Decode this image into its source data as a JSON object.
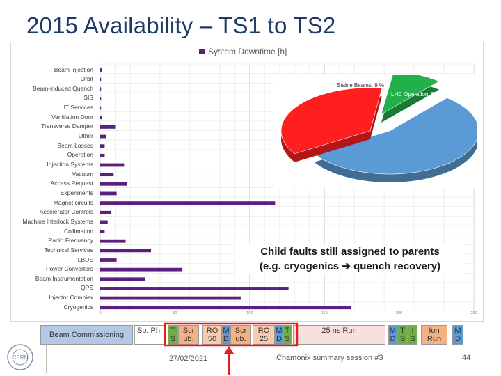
{
  "title": "2015 Availability – TS1 to TS2",
  "chart_data": [
    {
      "type": "bar",
      "orientation": "horizontal",
      "legend": "System Downtime [h]",
      "legend_placement": "top",
      "color": "#5b1f7f",
      "categories": [
        "Beam Injection",
        "Orbit",
        "Beam-induced Quench",
        "SIS",
        "IT Services",
        "Ventilation Door",
        "Transverse Damper",
        "Other",
        "Beam Losses",
        "Operation",
        "Injection Systems",
        "Vacuum",
        "Access Request",
        "Experiments",
        "Magnet circuits",
        "Accelerator Controls",
        "Machine Interlock Systems",
        "Collimation",
        "Radio Frequency",
        "Technical Services",
        "LBDS",
        "Power Converters",
        "Beam Instrumentation",
        "QPS",
        "Injector Complex",
        "Cryogenics"
      ],
      "values": [
        1,
        0.3,
        0.3,
        0.3,
        0.3,
        1.2,
        10,
        4,
        3,
        3,
        16,
        9,
        18,
        11,
        117,
        7,
        5,
        3,
        17,
        34,
        11,
        55,
        30,
        126,
        94,
        168
      ],
      "ticks": [
        "0",
        "50",
        "100",
        "150",
        "200",
        "250"
      ],
      "xlim": [
        0,
        250
      ],
      "grid": true
    },
    {
      "type": "pie",
      "slices": [
        {
          "label": "LHC Operation, 55 %",
          "value": 55,
          "color": "#5b9bd5"
        },
        {
          "label": "LHC Downtime, 36 %",
          "value": 36,
          "color": "#ff1f1f"
        },
        {
          "label": "Stable Beams, 9 %",
          "value": 9,
          "color": "#22b04a"
        }
      ]
    }
  ],
  "annotation": {
    "line1": "Child faults still assigned to parents",
    "line2_pre": "(e.g. cryogenics ",
    "arrow": "➔",
    "line2_post": " quench recovery)"
  },
  "timeline": [
    {
      "label": "Beam Commissioning",
      "color": "#b4c7e7"
    },
    {
      "label": "Sp. Ph.",
      "color": "#ffffff"
    },
    {
      "label": "T S",
      "color": "#70ad47"
    },
    {
      "label": "Scr ub.",
      "color": "#f4b183"
    },
    {
      "label": "RO 50",
      "color": "#f8cbad"
    },
    {
      "label": "M D",
      "color": "#5b9bd5"
    },
    {
      "label": "Scr ub.",
      "color": "#f4b183"
    },
    {
      "label": "RO 25",
      "color": "#f8cbad"
    },
    {
      "label": "M D",
      "color": "#5b9bd5"
    },
    {
      "label": "T S",
      "color": "#70ad47"
    },
    {
      "label": "25 ns Run",
      "color": "#f8e0e0"
    },
    {
      "label": "M D",
      "color": "#5b9bd5"
    },
    {
      "label": "T S",
      "color": "#70ad47"
    },
    {
      "label": "I S",
      "color": "#70ad47"
    },
    {
      "label": "Ion Run",
      "color": "#f4b183"
    },
    {
      "label": "M D",
      "color": "#5b9bd5"
    }
  ],
  "footer": {
    "date": "27/02/2021",
    "session": "Chamonix summary session #3",
    "page": "44",
    "logo_text": "CERN"
  }
}
